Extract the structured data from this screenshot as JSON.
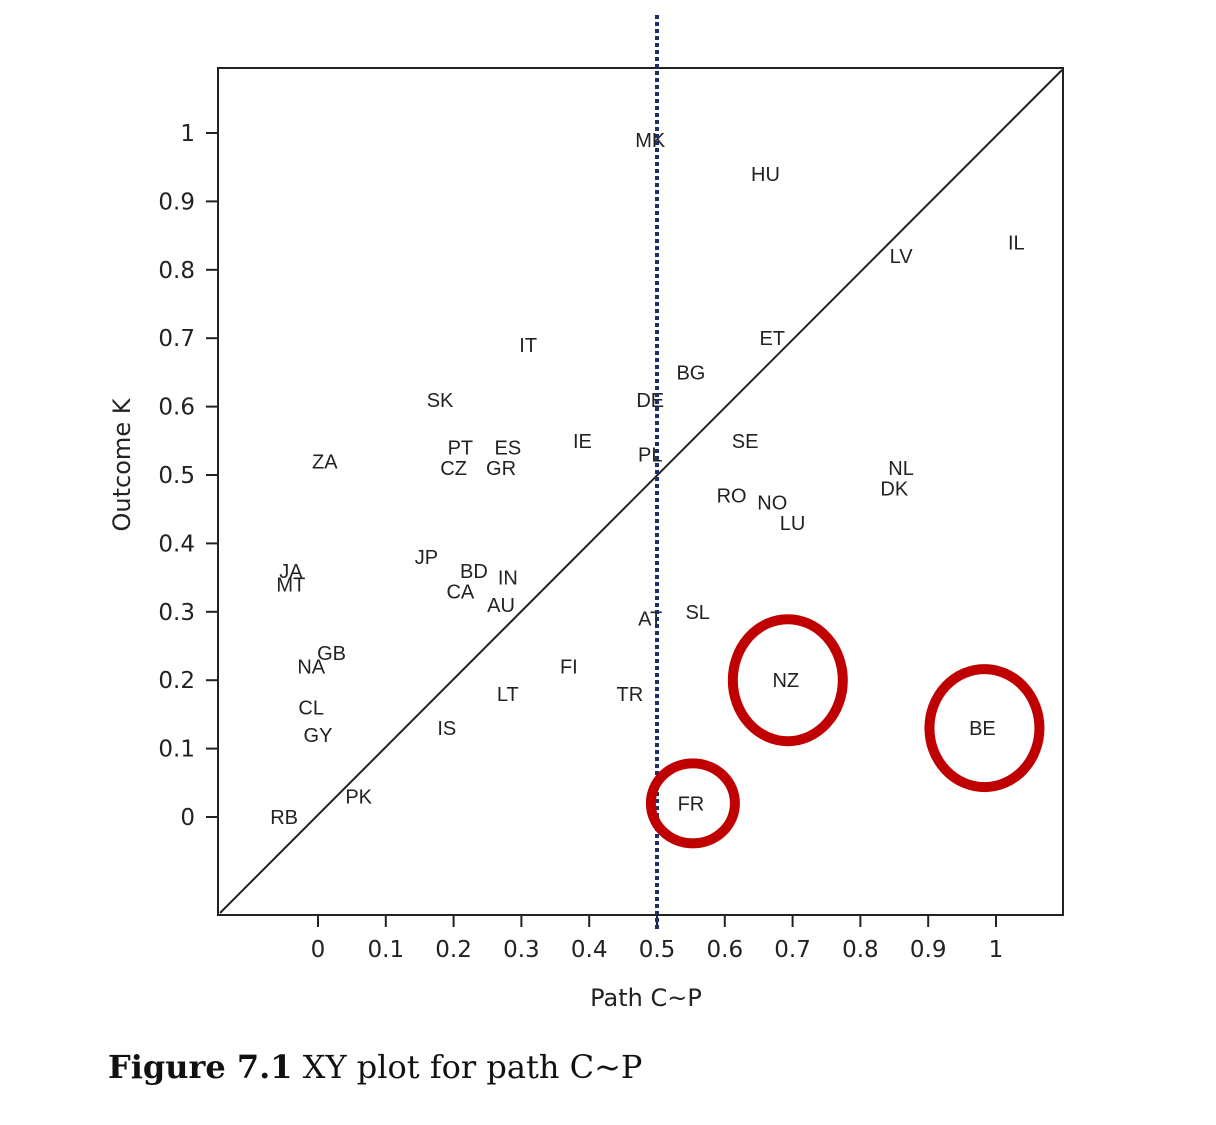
{
  "chart_data": {
    "type": "scatter",
    "xlabel": "Path C~P",
    "ylabel": "Outcome K",
    "xlim": [
      0,
      1
    ],
    "ylim": [
      0,
      1
    ],
    "x_ticks": [
      "0",
      "0.1",
      "0.2",
      "0.3",
      "0.4",
      "0.5",
      "0.6",
      "0.7",
      "0.8",
      "0.9",
      "1"
    ],
    "y_ticks": [
      "0",
      "0.1",
      "0.2",
      "0.3",
      "0.4",
      "0.5",
      "0.6",
      "0.7",
      "0.8",
      "0.9",
      "1"
    ],
    "diagonal": true,
    "vertical_line_x": 0.5,
    "points": [
      {
        "label": "MK",
        "x": 0.49,
        "y": 0.99
      },
      {
        "label": "HU",
        "x": 0.66,
        "y": 0.94
      },
      {
        "label": "IL",
        "x": 1.03,
        "y": 0.84
      },
      {
        "label": "LV",
        "x": 0.86,
        "y": 0.82
      },
      {
        "label": "ET",
        "x": 0.67,
        "y": 0.7
      },
      {
        "label": "IT",
        "x": 0.31,
        "y": 0.69
      },
      {
        "label": "BG",
        "x": 0.55,
        "y": 0.65
      },
      {
        "label": "SK",
        "x": 0.18,
        "y": 0.61
      },
      {
        "label": "DE",
        "x": 0.49,
        "y": 0.61
      },
      {
        "label": "IE",
        "x": 0.39,
        "y": 0.55
      },
      {
        "label": "SE",
        "x": 0.63,
        "y": 0.55
      },
      {
        "label": "PT",
        "x": 0.21,
        "y": 0.54
      },
      {
        "label": "ES",
        "x": 0.28,
        "y": 0.54
      },
      {
        "label": "PL",
        "x": 0.49,
        "y": 0.53
      },
      {
        "label": "ZA",
        "x": 0.01,
        "y": 0.52
      },
      {
        "label": "NL",
        "x": 0.86,
        "y": 0.51
      },
      {
        "label": "CZ",
        "x": 0.2,
        "y": 0.51
      },
      {
        "label": "GR",
        "x": 0.27,
        "y": 0.51
      },
      {
        "label": "DK",
        "x": 0.85,
        "y": 0.48
      },
      {
        "label": "RO",
        "x": 0.61,
        "y": 0.47
      },
      {
        "label": "NO",
        "x": 0.67,
        "y": 0.46
      },
      {
        "label": "LU",
        "x": 0.7,
        "y": 0.43
      },
      {
        "label": "JP",
        "x": 0.16,
        "y": 0.38
      },
      {
        "label": "JA",
        "x": -0.04,
        "y": 0.36
      },
      {
        "label": "BD",
        "x": 0.23,
        "y": 0.36
      },
      {
        "label": "IN",
        "x": 0.28,
        "y": 0.35
      },
      {
        "label": "MT",
        "x": -0.04,
        "y": 0.34
      },
      {
        "label": "CA",
        "x": 0.21,
        "y": 0.33
      },
      {
        "label": "AU",
        "x": 0.27,
        "y": 0.31
      },
      {
        "label": "SL",
        "x": 0.56,
        "y": 0.3
      },
      {
        "label": "AT",
        "x": 0.49,
        "y": 0.29
      },
      {
        "label": "GB",
        "x": 0.02,
        "y": 0.24
      },
      {
        "label": "NA",
        "x": -0.01,
        "y": 0.22
      },
      {
        "label": "FI",
        "x": 0.37,
        "y": 0.22
      },
      {
        "label": "NZ",
        "x": 0.69,
        "y": 0.2
      },
      {
        "label": "LT",
        "x": 0.28,
        "y": 0.18
      },
      {
        "label": "TR",
        "x": 0.46,
        "y": 0.18
      },
      {
        "label": "CL",
        "x": -0.01,
        "y": 0.16
      },
      {
        "label": "BE",
        "x": 0.98,
        "y": 0.13
      },
      {
        "label": "IS",
        "x": 0.19,
        "y": 0.13
      },
      {
        "label": "GY",
        "x": 0.0,
        "y": 0.12
      },
      {
        "label": "PK",
        "x": 0.06,
        "y": 0.03
      },
      {
        "label": "FR",
        "x": 0.55,
        "y": 0.02
      },
      {
        "label": "RB",
        "x": -0.05,
        "y": 0.0
      }
    ],
    "circled": [
      "FR",
      "NZ",
      "BE"
    ],
    "annotation_color": "#c00000",
    "vline_color": "#1f2f66"
  },
  "caption": {
    "label": "Figure 7.1",
    "text": " XY plot for path C~P"
  }
}
